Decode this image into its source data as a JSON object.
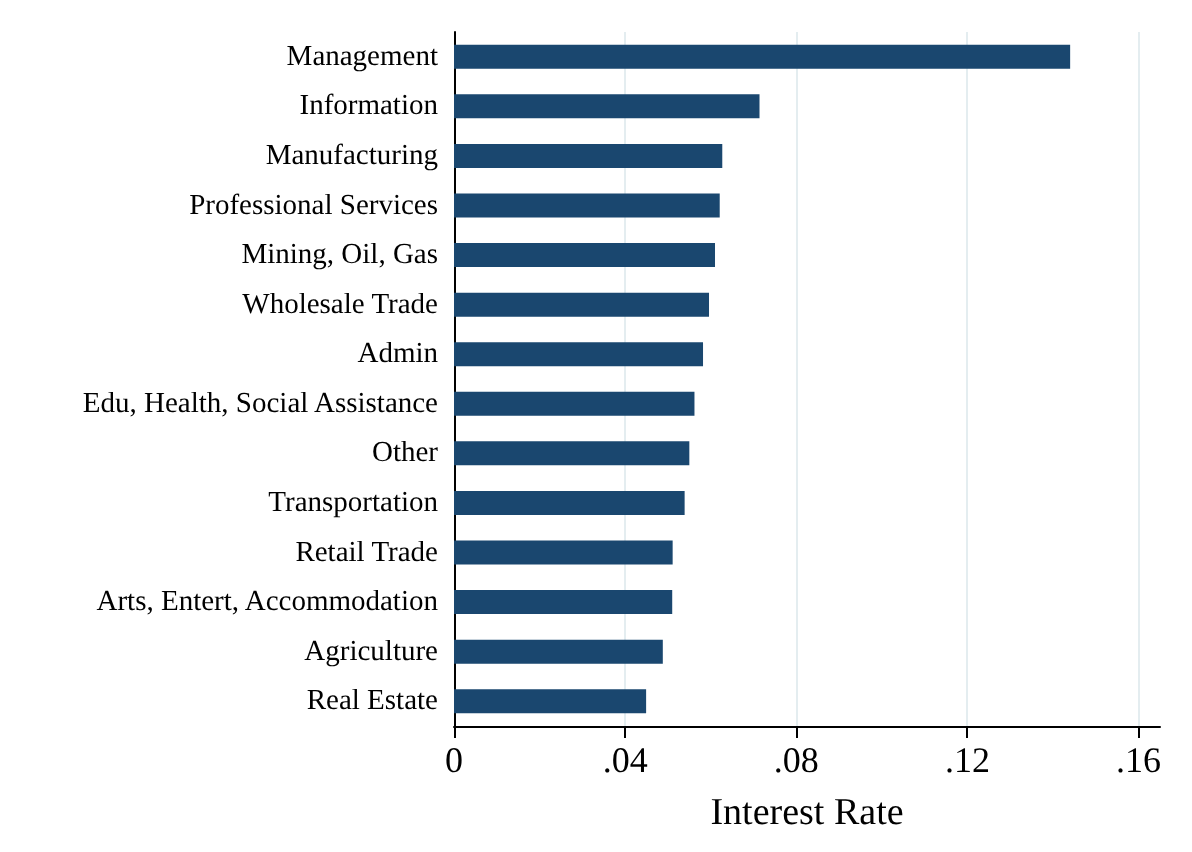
{
  "chart_data": {
    "type": "bar",
    "orientation": "horizontal",
    "xlabel": "Interest Rate",
    "categories": [
      "Management",
      "Information",
      "Manufacturing",
      "Professional Services",
      "Mining, Oil, Gas",
      "Wholesale Trade",
      "Admin",
      "Edu, Health, Social Assistance",
      "Other",
      "Transportation",
      "Retail Trade",
      "Arts, Entert, Accommodation",
      "Agriculture",
      "Real Estate"
    ],
    "values": [
      0.144,
      0.0714,
      0.0627,
      0.0621,
      0.061,
      0.0596,
      0.0582,
      0.0562,
      0.055,
      0.0539,
      0.0511,
      0.051,
      0.0488,
      0.0449
    ],
    "color": "#1a476f",
    "xlim": [
      0,
      0.165
    ],
    "xticks": [
      {
        "value": 0,
        "label": "0"
      },
      {
        "value": 0.04,
        "label": ".04"
      },
      {
        "value": 0.08,
        "label": ".08"
      },
      {
        "value": 0.12,
        "label": ".12"
      },
      {
        "value": 0.16,
        "label": ".16"
      }
    ],
    "grid": "x"
  }
}
